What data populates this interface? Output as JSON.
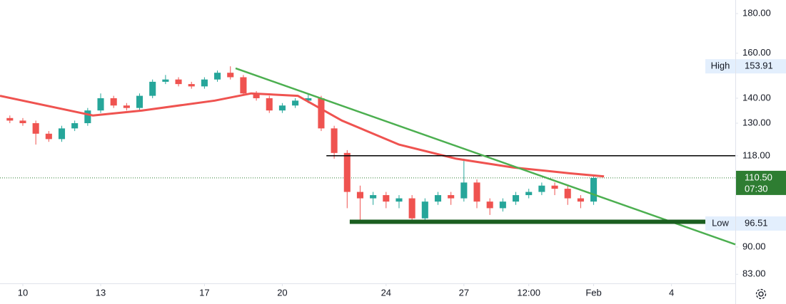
{
  "chart_data": {
    "type": "candlestick",
    "log_scale": true,
    "up_color": "#26a69a",
    "down_color": "#ef5350",
    "x": [
      9.5,
      10,
      10.5,
      11,
      11.5,
      12,
      12.5,
      13,
      13.5,
      14,
      14.5,
      15,
      15.5,
      16,
      16.5,
      17,
      17.5,
      18,
      18.5,
      19,
      19.5,
      20,
      20.5,
      21,
      21.5,
      22,
      22.5,
      23,
      23.5,
      24,
      24.5,
      25,
      25.5,
      26,
      26.5,
      27,
      27.5,
      28,
      28.5,
      29,
      29.5,
      30,
      30.5,
      31,
      31.5,
      32
    ],
    "open": [
      132,
      131,
      130,
      126,
      124,
      128,
      130,
      135,
      140,
      137,
      136,
      141,
      147,
      148,
      146,
      145,
      148,
      151,
      149,
      142,
      140,
      135,
      137,
      139,
      140,
      128,
      119,
      106,
      104,
      105,
      103,
      104,
      98,
      103,
      105,
      104,
      109,
      103,
      101,
      103,
      105,
      106,
      108,
      107,
      104,
      103
    ],
    "high": [
      133,
      132,
      131,
      127,
      129,
      131,
      136,
      142,
      141,
      138,
      142,
      148,
      150,
      149,
      147,
      149,
      152,
      153.91,
      150,
      143,
      141,
      138,
      140,
      142,
      141,
      129,
      120,
      108,
      106,
      106,
      105,
      105,
      104,
      106,
      106,
      117,
      110,
      104,
      104,
      106,
      107,
      109,
      109,
      108,
      105,
      111
    ],
    "low": [
      130,
      129,
      122,
      123,
      123,
      127,
      129,
      134,
      136,
      135,
      135,
      140,
      146,
      145,
      144,
      144,
      147,
      148,
      141,
      139,
      134,
      134,
      136,
      138,
      127,
      117,
      101,
      97,
      102,
      101,
      101,
      96.51,
      97,
      102,
      102,
      103,
      101,
      99,
      100,
      102,
      104,
      105,
      105,
      102,
      101,
      102
    ],
    "close": [
      131,
      130,
      126,
      124,
      128,
      130,
      135,
      140,
      137,
      136,
      141,
      147,
      148,
      146,
      145,
      148,
      151,
      149,
      142,
      140,
      135,
      137,
      139,
      140,
      128,
      119,
      106,
      104,
      105,
      103,
      104,
      98,
      103,
      105,
      104,
      109,
      103,
      101,
      103,
      105,
      106,
      108,
      107,
      104,
      103,
      110.5
    ],
    "moving_average": {
      "color": "#ef5350",
      "x": [
        9.12,
        12.7,
        14.6,
        17.4,
        18.8,
        20.6,
        22.3,
        24.5,
        26.7,
        28.9,
        31.1,
        32.4
      ],
      "values": [
        141,
        133,
        135,
        139,
        142,
        141,
        131,
        122,
        117,
        114,
        112,
        111
      ]
    },
    "trendline": {
      "color": "#4caf50",
      "x": [
        18.2,
        37.46
      ],
      "values": [
        153,
        90.7
      ]
    },
    "resistance": {
      "color": "#000000",
      "x": [
        21.7,
        37.46
      ],
      "values": [
        118,
        118
      ]
    },
    "support": {
      "color": "#1b5e20",
      "x": [
        22.6,
        36.4
      ],
      "values": [
        97,
        97
      ]
    },
    "xlim": [
      9.12,
      37.46
    ],
    "ylim": [
      80.8,
      187.4
    ],
    "xticks": [
      10,
      13,
      17,
      20,
      24,
      27,
      {
        "value": 29.5,
        "label": "12:00"
      },
      {
        "value": 32,
        "label": "Feb"
      },
      {
        "value": 35,
        "label": "4"
      }
    ],
    "yticks": [
      {
        "value": 180,
        "label": "180.00"
      },
      {
        "value": 160,
        "label": "160.00"
      },
      {
        "value": 140,
        "label": "140.00"
      },
      {
        "value": 130,
        "label": "130.00"
      },
      {
        "value": 118,
        "label": "118.00"
      },
      {
        "value": 90,
        "label": "90.00"
      },
      {
        "value": 83,
        "label": "83.00"
      }
    ],
    "high_marker": {
      "label": "High",
      "value": 153.91
    },
    "low_marker": {
      "label": "Low",
      "value": 96.51
    },
    "last_price": {
      "value": 110.5,
      "label": "110.50",
      "countdown": "07:30",
      "color": "#2e7d32"
    }
  }
}
